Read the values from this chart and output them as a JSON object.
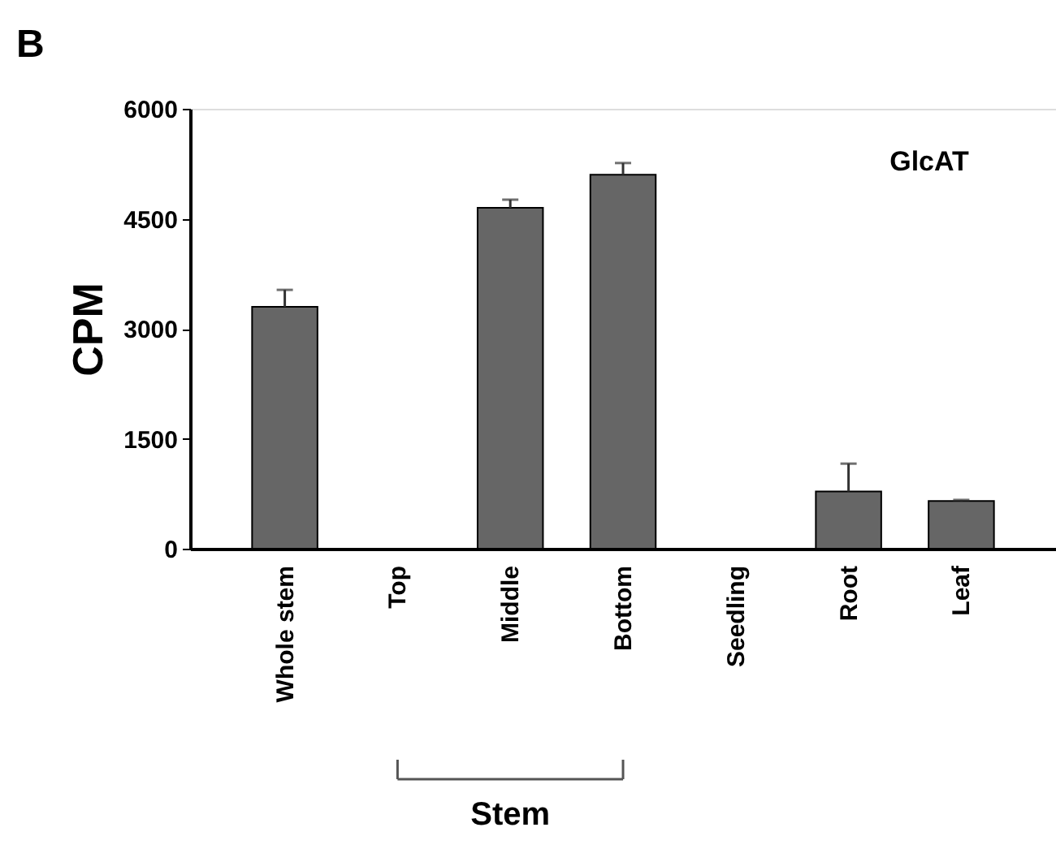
{
  "chart_data": {
    "type": "bar",
    "title": "B",
    "ylabel": "CPM",
    "categories": [
      "Whole stem",
      "Top",
      "Middle",
      "Bottom",
      "Seedling",
      "Root",
      "Leaf"
    ],
    "values": [
      3300,
      null,
      4650,
      5100,
      null,
      780,
      650
    ],
    "errors": [
      230,
      null,
      110,
      160,
      null,
      380,
      15
    ],
    "color": "#666666",
    "ylim": [
      0,
      6000
    ],
    "yticks": [
      0,
      1500,
      3000,
      4500,
      6000
    ],
    "grid": false,
    "annotations": [
      "GlcAT",
      "Stem"
    ]
  }
}
